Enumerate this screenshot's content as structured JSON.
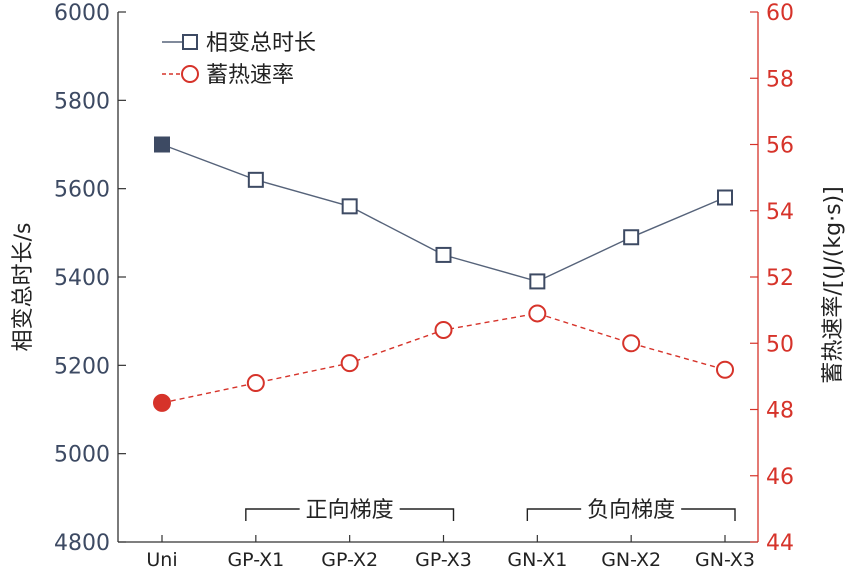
{
  "chart_data": {
    "type": "line",
    "categories": [
      "Uni",
      "GP-X1",
      "GP-X2",
      "GP-X3",
      "GN-X1",
      "GN-X2",
      "GN-X3"
    ],
    "series": [
      {
        "name": "相变总时长",
        "axis": "left",
        "values": [
          5700,
          5620,
          5560,
          5450,
          5390,
          5490,
          5580
        ],
        "color": "#56637a",
        "style": "solid",
        "marker": "square"
      },
      {
        "name": "蓄热速率",
        "axis": "right",
        "values": [
          48.2,
          48.8,
          49.4,
          50.4,
          50.9,
          50.0,
          49.2
        ],
        "color": "#d6332a",
        "style": "dashed",
        "marker": "circle"
      }
    ],
    "y_left": {
      "label": "相变总时长/s",
      "range": [
        4800,
        6000
      ],
      "ticks": [
        "4800",
        "5000",
        "5200",
        "5400",
        "5600",
        "5800",
        "6000"
      ],
      "color": "#3d4a63"
    },
    "y_right": {
      "label": "蓄热速率/[(J/(kg·s)]",
      "range": [
        44,
        60
      ],
      "ticks": [
        "44",
        "46",
        "48",
        "50",
        "52",
        "54",
        "56",
        "58",
        "60"
      ],
      "color": "#d6332a"
    },
    "groups": [
      {
        "label": "正向梯度",
        "from": 1,
        "to": 3
      },
      {
        "label": "负向梯度",
        "from": 4,
        "to": 6
      }
    ],
    "legend_position": "top-left",
    "grid": false
  }
}
